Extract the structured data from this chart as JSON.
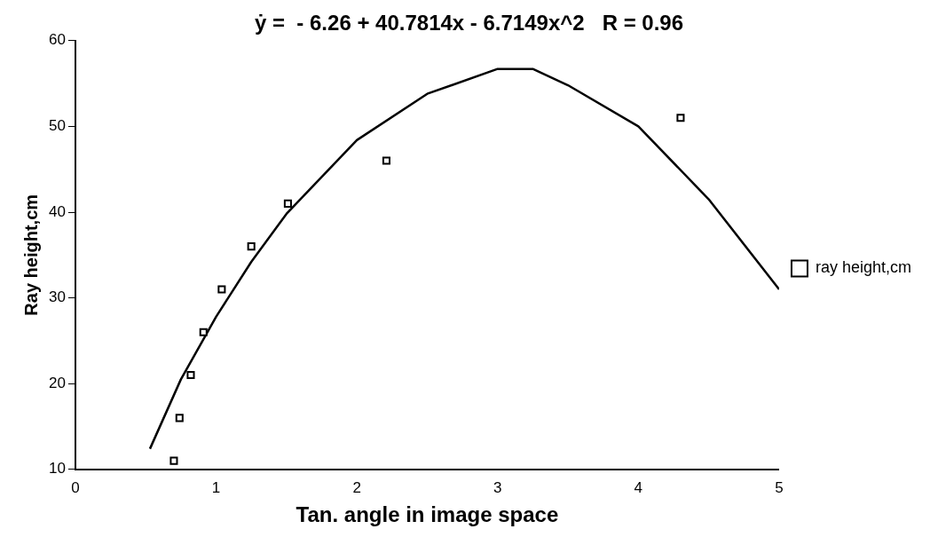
{
  "chart_data": {
    "type": "scatter",
    "title": "ẏ =  - 6.26 + 40.7814x - 6.7149x^2   R = 0.96",
    "xlabel": "Tan. angle in image space",
    "ylabel": "Ray height,cm",
    "xlim": [
      0,
      5
    ],
    "xticks": [
      0,
      1,
      2,
      3,
      4,
      5
    ],
    "ylim": [
      10,
      60
    ],
    "yticks": [
      10,
      20,
      30,
      40,
      50,
      60
    ],
    "grid": false,
    "legend": "right",
    "series": [
      {
        "name": "ray height,cm",
        "color": "#000000",
        "marker": "square",
        "x": [
          0.7,
          0.74,
          0.82,
          0.91,
          1.04,
          1.25,
          1.51,
          2.21,
          4.3
        ],
        "values": [
          11,
          16,
          21,
          26,
          31,
          36,
          41,
          46,
          51
        ]
      },
      {
        "type": "line",
        "color": "#000000",
        "marker": "none",
        "x": [
          0.53,
          0.75,
          1,
          1.25,
          1.5,
          2,
          2.5,
          3,
          3.25,
          3.5,
          4,
          4.5,
          5
        ],
        "values": [
          12.4,
          20.5,
          27.8,
          34.2,
          39.8,
          48.4,
          53.8,
          56.7,
          56.7,
          54.8,
          50,
          41.5,
          31
        ]
      }
    ]
  }
}
